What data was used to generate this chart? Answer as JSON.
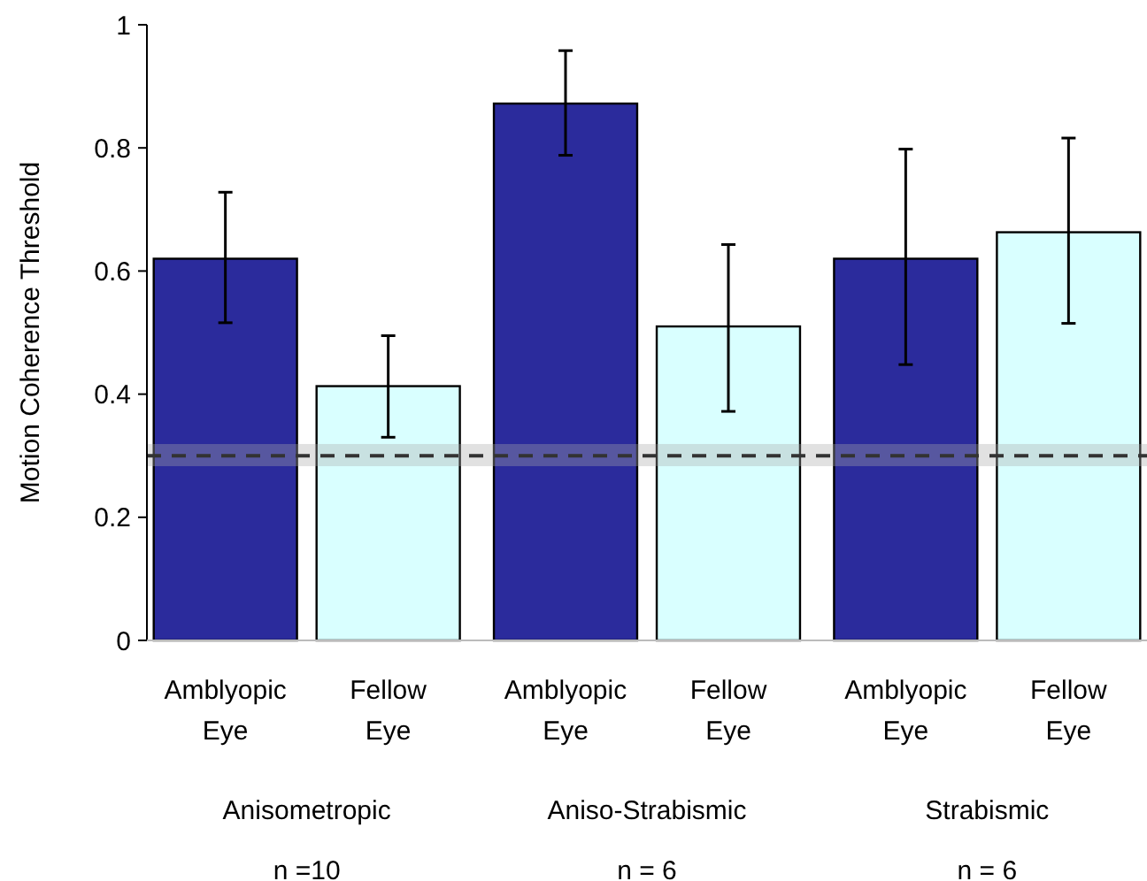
{
  "chart_data": {
    "type": "bar",
    "ylabel": "Motion Coherence Threshold",
    "categories": [
      "Anisometropic",
      "Aniso-Strabismic",
      "Strabismic"
    ],
    "series": [
      {
        "name": "Amblyopic Eye",
        "color": "#2b2b9c",
        "values": [
          0.62,
          0.872,
          0.62
        ],
        "errors": [
          [
            0.516,
            0.728
          ],
          [
            0.788,
            0.958
          ],
          [
            0.448,
            0.798
          ]
        ]
      },
      {
        "name": "Fellow Eye",
        "color": "#d9ffff",
        "values": [
          0.413,
          0.51,
          0.663
        ],
        "errors": [
          [
            0.33,
            0.495
          ],
          [
            0.372,
            0.643
          ],
          [
            0.515,
            0.816
          ]
        ]
      }
    ],
    "ylim": [
      0,
      1
    ],
    "yticks": [
      0,
      0.2,
      0.4,
      0.6,
      0.8,
      1
    ],
    "ref_lines": [
      {
        "axis": "y",
        "value": 0.3,
        "color": "#333333",
        "line_style": "dashed"
      }
    ],
    "bands": [
      {
        "axis": "y",
        "from": 0.283,
        "to": 0.319,
        "color": "#aaaaaa"
      }
    ],
    "annotations": [
      "n =10",
      "n = 6",
      "n = 6"
    ]
  }
}
